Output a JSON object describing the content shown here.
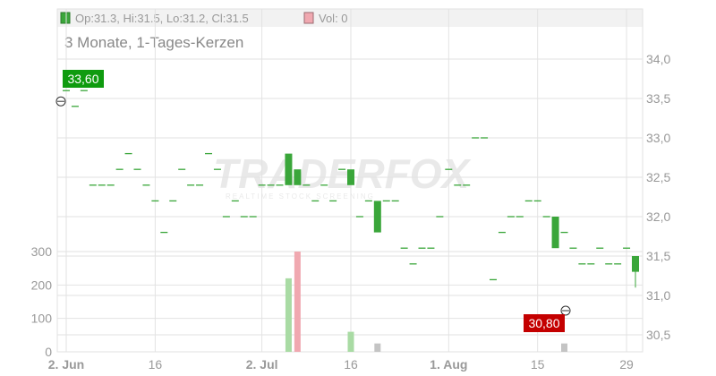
{
  "header": {
    "ohlc_text": "Op:31.3, Hi:31.5, Lo:31.2, Cl:31.5",
    "vol_text": "Vol: 0"
  },
  "subtitle": "3 Monate, 1-Tages-Kerzen",
  "watermark": {
    "brand": "TRADERFOX",
    "tagline": "REALTIME STOCK SCREENING"
  },
  "colors": {
    "up": "#3aa63a",
    "down": "#3aa63a",
    "flat": "#3aa63a",
    "volume_up": "#a9dba4",
    "volume_down": "#f0a8b0",
    "volume_zero": "#c4c4c4",
    "high_label": "#0f9b0f",
    "low_label": "#c40000",
    "grid": "#e2e2e2",
    "axis_text": "#999999"
  },
  "chart_data": {
    "type": "candlestick",
    "title": "3 Monate, 1-Tages-Kerzen",
    "price_axis": {
      "ticks": [
        "34,0",
        "33,5",
        "33,0",
        "32,5",
        "32,0",
        "31,5",
        "31,0",
        "30,5"
      ],
      "range": [
        30.3,
        34.2
      ]
    },
    "volume_axis": {
      "ticks": [
        "300",
        "200",
        "100",
        "0"
      ],
      "range": [
        0,
        350
      ]
    },
    "x_labels": [
      "2. Jun",
      "16",
      "2. Jul",
      "16",
      "1. Aug",
      "15",
      "29"
    ],
    "high_marker": "33,60",
    "low_marker": "30,80",
    "candles": [
      {
        "o": 33.6,
        "c": 33.6
      },
      {
        "o": 33.4,
        "c": 33.4
      },
      {
        "o": 33.6,
        "c": 33.6
      },
      {
        "o": 32.4,
        "c": 32.4
      },
      {
        "o": 32.4,
        "c": 32.4
      },
      {
        "o": 32.4,
        "c": 32.4
      },
      {
        "o": 32.6,
        "c": 32.6
      },
      {
        "o": 32.8,
        "c": 32.8
      },
      {
        "o": 32.6,
        "c": 32.6
      },
      {
        "o": 32.4,
        "c": 32.4
      },
      {
        "o": 32.2,
        "c": 32.2
      },
      {
        "o": 31.8,
        "c": 31.8
      },
      {
        "o": 32.2,
        "c": 32.2
      },
      {
        "o": 32.6,
        "c": 32.6
      },
      {
        "o": 32.4,
        "c": 32.4
      },
      {
        "o": 32.4,
        "c": 32.4
      },
      {
        "o": 32.8,
        "c": 32.8
      },
      {
        "o": 32.6,
        "c": 32.6
      },
      {
        "o": 32.0,
        "c": 32.0
      },
      {
        "o": 32.2,
        "c": 32.2
      },
      {
        "o": 32.0,
        "c": 32.0
      },
      {
        "o": 32.0,
        "c": 32.0
      },
      {
        "o": 32.4,
        "c": 32.4
      },
      {
        "o": 32.4,
        "c": 32.4
      },
      {
        "o": 32.4,
        "c": 32.4
      },
      {
        "o": 32.4,
        "c": 32.8
      },
      {
        "o": 32.4,
        "c": 32.6
      },
      {
        "o": 32.4,
        "c": 32.4
      },
      {
        "o": 32.2,
        "c": 32.2
      },
      {
        "o": 32.4,
        "c": 32.4
      },
      {
        "o": 32.2,
        "c": 32.2
      },
      {
        "o": 32.6,
        "c": 32.6
      },
      {
        "o": 32.4,
        "c": 32.6
      },
      {
        "o": 32.0,
        "c": 32.0
      },
      {
        "o": 32.2,
        "c": 32.2
      },
      {
        "o": 31.8,
        "c": 32.2
      },
      {
        "o": 32.2,
        "c": 32.2
      },
      {
        "o": 32.2,
        "c": 32.2
      },
      {
        "o": 31.6,
        "c": 31.6
      },
      {
        "o": 31.4,
        "c": 31.4
      },
      {
        "o": 31.6,
        "c": 31.6
      },
      {
        "o": 31.6,
        "c": 31.6
      },
      {
        "o": 32.0,
        "c": 32.0
      },
      {
        "o": 32.6,
        "c": 32.6
      },
      {
        "o": 32.4,
        "c": 32.4
      },
      {
        "o": 32.4,
        "c": 32.4
      },
      {
        "o": 33.0,
        "c": 33.0
      },
      {
        "o": 33.0,
        "c": 33.0
      },
      {
        "o": 31.2,
        "c": 31.2
      },
      {
        "o": 31.8,
        "c": 31.8
      },
      {
        "o": 32.0,
        "c": 32.0
      },
      {
        "o": 32.0,
        "c": 32.0
      },
      {
        "o": 32.2,
        "c": 32.2
      },
      {
        "o": 32.2,
        "c": 32.2
      },
      {
        "o": 32.0,
        "c": 32.0
      },
      {
        "o": 31.6,
        "c": 32.0
      },
      {
        "o": 31.8,
        "c": 31.8
      },
      {
        "o": 31.6,
        "c": 31.6
      },
      {
        "o": 31.4,
        "c": 31.4
      },
      {
        "o": 31.4,
        "c": 31.4
      },
      {
        "o": 31.6,
        "c": 31.6
      },
      {
        "o": 31.4,
        "c": 31.4
      },
      {
        "o": 31.4,
        "c": 31.4
      },
      {
        "o": 31.6,
        "c": 31.6
      },
      {
        "o": 31.3,
        "c": 31.5
      }
    ],
    "volumes": [
      {
        "i": 25,
        "v": 220,
        "kind": "up"
      },
      {
        "i": 26,
        "v": 300,
        "kind": "down"
      },
      {
        "i": 32,
        "v": 60,
        "kind": "up"
      },
      {
        "i": 35,
        "v": 25,
        "kind": "zero"
      },
      {
        "i": 56,
        "v": 25,
        "kind": "zero"
      }
    ]
  }
}
